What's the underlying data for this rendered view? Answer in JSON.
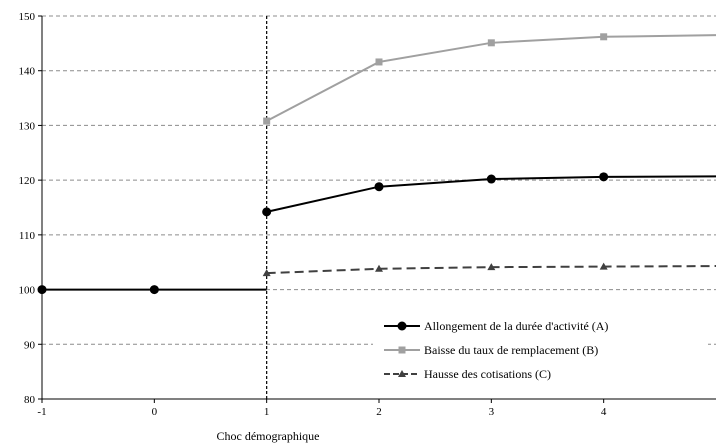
{
  "chart_data": {
    "type": "line",
    "xlabel": "Choc démographique",
    "ylabel": "",
    "title": "",
    "xlim": [
      -1,
      5
    ],
    "ylim": [
      80,
      150
    ],
    "xticks": [
      -1,
      0,
      1,
      2,
      3,
      4
    ],
    "yticks": [
      80,
      90,
      100,
      110,
      120,
      130,
      140,
      150
    ],
    "grid": "horizontal dashed",
    "shock_marker_x": 1,
    "legend_position": "bottom-right",
    "baseline": {
      "x": [
        -1,
        0,
        1
      ],
      "y": [
        100,
        100,
        100
      ],
      "color": "#000000"
    },
    "series": [
      {
        "name": "Allongement de la durée d'activité (A)",
        "x": [
          1,
          2,
          3,
          4,
          5
        ],
        "y": [
          114.2,
          118.8,
          120.2,
          120.6,
          120.7
        ],
        "color": "#000000",
        "marker": "circle",
        "dash": "solid"
      },
      {
        "name": "Baisse du taux de remplacement (B)",
        "x": [
          1,
          2,
          3,
          4,
          5
        ],
        "y": [
          130.8,
          141.6,
          145.1,
          146.2,
          146.5
        ],
        "color": "#a0a0a0",
        "marker": "square",
        "dash": "solid"
      },
      {
        "name": "Hausse des cotisations (C)",
        "x": [
          1,
          2,
          3,
          4,
          5
        ],
        "y": [
          103,
          103.8,
          104.1,
          104.2,
          104.3
        ],
        "color": "#404040",
        "marker": "triangle",
        "dash": "dashed"
      }
    ],
    "baseline_markers": [
      {
        "x": -1,
        "y": 100
      },
      {
        "x": 0,
        "y": 100
      }
    ]
  }
}
